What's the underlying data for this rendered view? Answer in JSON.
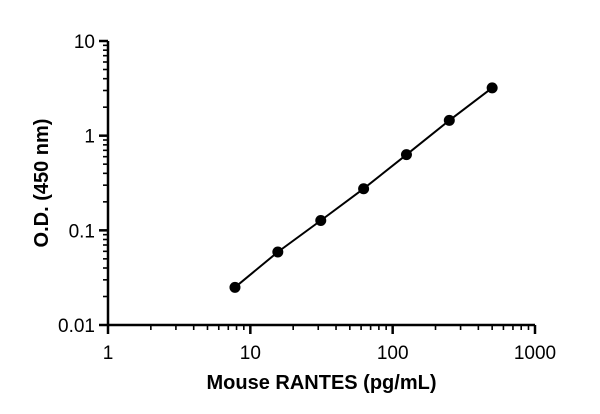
{
  "chart_data": {
    "type": "scatter",
    "xlabel": "Mouse RANTES (pg/mL)",
    "ylabel": "O.D. (450 nm)",
    "x_scale": "log",
    "y_scale": "log",
    "xlim": [
      1,
      1000
    ],
    "ylim": [
      0.01,
      10
    ],
    "x_ticks": [
      1,
      10,
      100,
      1000
    ],
    "x_tick_labels": [
      "1",
      "10",
      "100",
      "1000"
    ],
    "y_ticks": [
      0.01,
      0.1,
      1,
      10
    ],
    "y_tick_labels": [
      "0.01",
      "0.1",
      "1",
      "10"
    ],
    "grid": false,
    "series": [
      {
        "x": [
          7.8,
          15.6,
          31.25,
          62.5,
          125,
          250,
          500
        ],
        "y": [
          0.025,
          0.059,
          0.127,
          0.275,
          0.63,
          1.45,
          3.2
        ],
        "marker": "circle",
        "line": "fit"
      }
    ]
  }
}
